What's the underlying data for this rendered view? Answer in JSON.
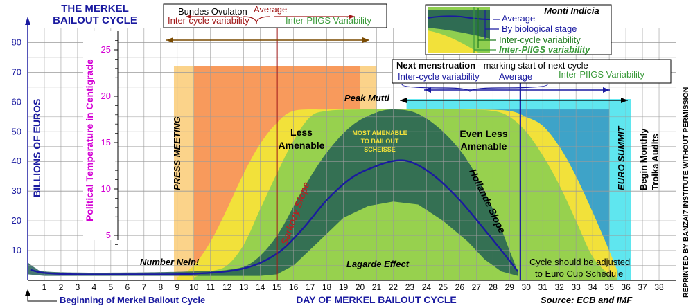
{
  "chart_data": {
    "type": "area",
    "title_line1": "THE MERKEL",
    "title_line2": "BAILOUT CYCLE",
    "xlabel": "DAY OF MERKEL BAILOUT CYCLE",
    "ylabel": "BILLIONS OF EUROS",
    "y2label": "Political Temperature in Centigrade",
    "xlim": [
      0,
      39
    ],
    "ylim": [
      0,
      85
    ],
    "x_ticks": [
      1,
      2,
      3,
      4,
      5,
      6,
      7,
      8,
      9,
      10,
      11,
      12,
      13,
      14,
      15,
      16,
      17,
      18,
      19,
      20,
      21,
      22,
      23,
      24,
      25,
      26,
      27,
      28,
      29,
      30,
      31,
      32,
      33,
      34,
      35,
      36,
      37,
      38
    ],
    "y_ticks": [
      10,
      20,
      30,
      40,
      50,
      60,
      70,
      80
    ],
    "y2_ticks": [
      5,
      10,
      15,
      20,
      25
    ],
    "grid": true,
    "average_line": [
      [
        0.2,
        3.5
      ],
      [
        1,
        2.5
      ],
      [
        3,
        2
      ],
      [
        6,
        2
      ],
      [
        10,
        2.2
      ],
      [
        13,
        4
      ],
      [
        15,
        9
      ],
      [
        16.5,
        17
      ],
      [
        18,
        27
      ],
      [
        19.5,
        34.5
      ],
      [
        21,
        38.5
      ],
      [
        22.2,
        40.3
      ],
      [
        23.2,
        39.5
      ],
      [
        24.5,
        35
      ],
      [
        26,
        27
      ],
      [
        27.5,
        17
      ],
      [
        28.8,
        8
      ],
      [
        29.5,
        3
      ]
    ],
    "by_biological_stage_band": {
      "upper": [
        [
          0,
          6
        ],
        [
          0.5,
          4
        ],
        [
          1,
          3
        ],
        [
          3,
          2.6
        ],
        [
          6,
          2.6
        ],
        [
          10,
          3
        ],
        [
          12,
          3.5
        ],
        [
          13.5,
          6
        ],
        [
          15,
          15
        ],
        [
          16.5,
          30
        ],
        [
          18,
          43
        ],
        [
          19.5,
          52
        ],
        [
          21,
          56.5
        ],
        [
          22.2,
          57.5
        ],
        [
          23.5,
          56
        ],
        [
          25,
          50
        ],
        [
          26.5,
          40
        ],
        [
          28,
          24
        ],
        [
          29,
          10
        ],
        [
          29.5,
          3
        ]
      ],
      "lower": [
        [
          0,
          2
        ],
        [
          1,
          1.5
        ],
        [
          6,
          1.5
        ],
        [
          12,
          1.5
        ],
        [
          14,
          1.5
        ],
        [
          15,
          2
        ],
        [
          16,
          5
        ],
        [
          17.5,
          13
        ],
        [
          19,
          21
        ],
        [
          20.5,
          25
        ],
        [
          22,
          26.5
        ],
        [
          23.5,
          25.5
        ],
        [
          25,
          20
        ],
        [
          26.5,
          13
        ],
        [
          27.5,
          7
        ],
        [
          28.5,
          3
        ],
        [
          29.5,
          1.5
        ]
      ]
    },
    "inter_cycle_band": [
      [
        10,
        1
      ],
      [
        11,
        3
      ],
      [
        12,
        5
      ],
      [
        13,
        12
      ],
      [
        14,
        24
      ],
      [
        15,
        36
      ],
      [
        16,
        47
      ],
      [
        17,
        55
      ],
      [
        18,
        57
      ],
      [
        20,
        57.5
      ],
      [
        22,
        57.5
      ],
      [
        23,
        57.5
      ],
      [
        26,
        57.5
      ],
      [
        28,
        57
      ],
      [
        29,
        55
      ],
      [
        30,
        50
      ],
      [
        31,
        42
      ],
      [
        32,
        32
      ],
      [
        33,
        20
      ],
      [
        34,
        8
      ],
      [
        35,
        2
      ],
      [
        35.5,
        1
      ]
    ],
    "inter_piigs_band": [
      [
        9,
        1
      ],
      [
        10,
        5
      ],
      [
        11,
        13
      ],
      [
        12,
        24
      ],
      [
        13,
        36
      ],
      [
        14,
        46
      ],
      [
        15,
        53
      ],
      [
        16,
        57
      ],
      [
        18,
        57.5
      ],
      [
        21,
        57.5
      ],
      [
        24,
        57.5
      ],
      [
        27,
        57.5
      ],
      [
        29,
        57
      ],
      [
        30,
        55
      ],
      [
        31,
        52
      ],
      [
        32,
        45
      ],
      [
        33,
        35
      ],
      [
        34,
        23
      ],
      [
        35,
        10
      ],
      [
        35.5,
        3
      ]
    ],
    "annotations": {
      "bundes_ovulaton": "Bundes Ovulaton",
      "average": "Average",
      "inter_cycle_variability": "Inter-cycle variability",
      "inter_piigs_variability": "Inter-PIIGS Variability",
      "press_meeting": "PRESS MEETING",
      "euro_summit": "EURO SUMMIT",
      "begin_monthly_1": "Begin Monthly",
      "begin_monthly_2": "Troika Audits",
      "less_amenable_1": "Less",
      "less_amenable_2": "Amenable",
      "most_amenable_1": "MOST AMENABLE",
      "most_amenable_2": "TO BAILOUT",
      "most_amenable_3": "SCHEISSE",
      "even_less_1": "Even Less",
      "even_less_2": "Amenable",
      "peak_mutti": "Peak Mutti",
      "sarkozy_slope": "Sarkozy Slope",
      "hollande_slope": "Hollande Slope",
      "number_nein": "Number Nein!",
      "lagarde_effect": "Lagarde Effect",
      "cycle_adjust_1": "Cycle should be adjusted",
      "cycle_adjust_2": "to Euro Cup Schedule",
      "next_menstruation_bold": "Next menstruation",
      "next_menstruation_rest": " - marking start of next cycle",
      "beginning_cycle": "Beginning of Merkel Bailout Cycle",
      "source": "Source: ECB and IMF",
      "reprinted": "REPRINTED BY BANZAI7 INSTITUTE WITHOUT PERMISSION"
    },
    "legend": {
      "title": "Monti Indicia",
      "items": [
        "Average",
        "By biological stage",
        "Inter-cycle variability",
        "Inter-PIIGS variability"
      ]
    },
    "colors": {
      "average_line": "#1a1aa0",
      "bio_band": "#1f5a54",
      "inter_cycle_band": "#8fcf50",
      "inter_piigs_band": "#f2e13a",
      "orange_zone": "#f89a5c",
      "yellow_zone": "#fbd38a",
      "cyan_zone": "#5fe6ef",
      "blue_zone": "#3ea3c8",
      "red_line": "#a01818",
      "title_blue": "#1a1aa0",
      "magenta": "#d400d4"
    }
  }
}
